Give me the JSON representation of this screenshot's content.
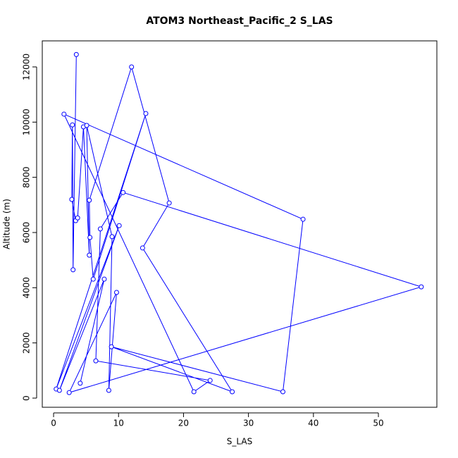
{
  "chart_data": {
    "type": "line",
    "title": "ATOM3 Northeast_Pacific_2 S_LAS",
    "x_label": "S_LAS",
    "y_label": "Altitude (m)",
    "series": [
      {
        "color": "#0000ff",
        "x": [
          3.5,
          3.0,
          2.9,
          2.8,
          3.4,
          3.7,
          4.6,
          5.5,
          5.1,
          9.0,
          8.5,
          9.7,
          2.4,
          56.6,
          10.7,
          7.2,
          6.5,
          24.1,
          21.6,
          1.6,
          38.4,
          35.3,
          8.9,
          27.5,
          13.7,
          17.8,
          12.0,
          5.5,
          5.6,
          6.1,
          14.2,
          0.4,
          10.1,
          0.9,
          7.8,
          4.1
        ],
        "values": [
          12450,
          4650,
          9900,
          7200,
          6430,
          6530,
          9830,
          5180,
          9880,
          5850,
          280,
          3830,
          200,
          4030,
          7450,
          6130,
          1350,
          640,
          230,
          10290,
          6480,
          230,
          1860,
          230,
          5440,
          7070,
          12000,
          7170,
          5820,
          4310,
          10310,
          330,
          6250,
          280,
          4310,
          540
        ]
      }
    ],
    "xlim": [
      -1.74,
      59.0
    ],
    "ylim": [
      -332,
      12944
    ],
    "xticks": [
      0,
      10,
      20,
      30,
      40,
      50
    ],
    "yticks": [
      0,
      2000,
      4000,
      6000,
      8000,
      10000,
      12000
    ]
  }
}
